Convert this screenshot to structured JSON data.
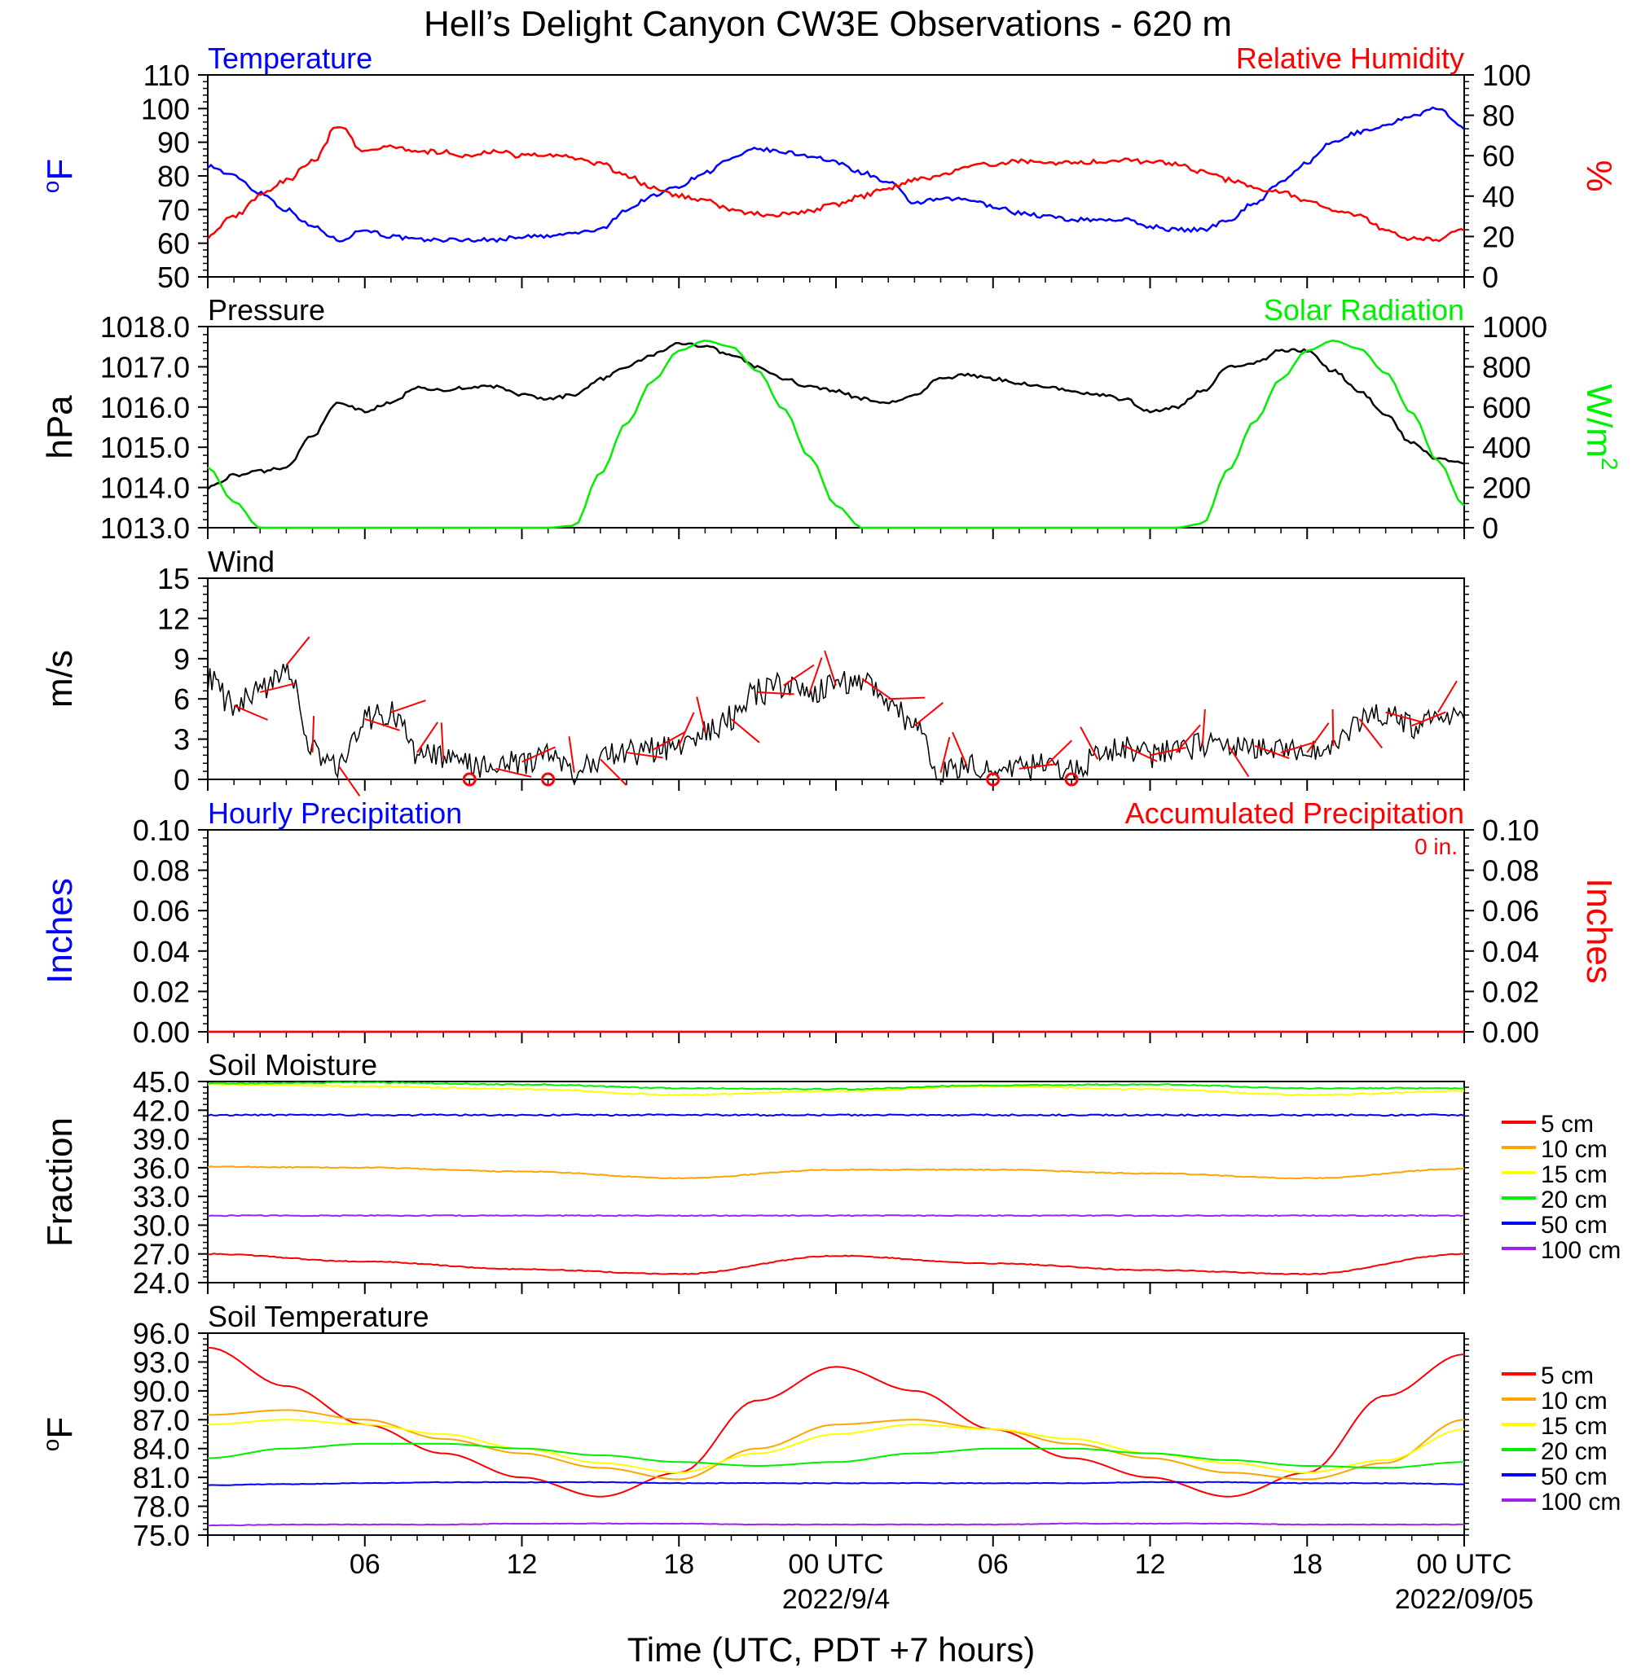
{
  "title": "Hell’s Delight Canyon CW3E Observations - 620 m",
  "xlabel": "Time (UTC, PDT +7 hours)",
  "x_ticks": [
    "06",
    "12",
    "18",
    "00 UTC",
    "06",
    "12",
    "18",
    "00 UTC"
  ],
  "x_dates": [
    "2022/9/4",
    "2022/09/05"
  ],
  "colors": {
    "blue": "#0000ff",
    "red": "#ff0000",
    "green": "#00ee00",
    "black": "#000000",
    "orange": "#ffa500",
    "yellow": "#ffff00",
    "purple": "#a020f0"
  },
  "chart_data": [
    {
      "type": "line",
      "title_left": "Temperature",
      "title_right": "Relative Humidity",
      "ylabel_left": "oF",
      "ylabel_right": "%",
      "ylim_left": [
        50,
        110
      ],
      "ylim_right": [
        0,
        100
      ],
      "yticks_left": [
        "50",
        "60",
        "70",
        "80",
        "90",
        "100",
        "110"
      ],
      "yticks_right": [
        "0",
        "20",
        "40",
        "60",
        "80",
        "100"
      ],
      "x_hours": [
        0,
        1,
        2,
        3,
        4,
        5,
        6,
        7,
        8,
        9,
        10,
        11,
        12,
        13,
        14,
        15,
        16,
        17,
        18,
        19,
        20,
        21,
        22,
        23,
        24,
        25,
        26,
        27,
        28,
        29,
        30,
        31,
        32,
        33,
        34,
        35,
        36,
        37,
        38,
        39,
        40,
        41,
        42,
        43,
        44,
        45,
        46,
        47,
        48
      ],
      "series": [
        {
          "name": "Temperature",
          "axis": "left",
          "color": "#0000ff",
          "values": [
            83,
            80,
            75,
            70,
            65,
            61,
            64,
            62,
            61,
            61,
            61,
            61,
            62,
            62,
            63,
            64,
            70,
            74,
            77,
            81,
            85,
            88,
            87,
            86,
            84,
            81,
            78,
            72,
            73,
            73,
            71,
            69,
            68,
            67,
            67,
            67,
            65,
            64,
            64,
            67,
            72,
            78,
            84,
            90,
            93,
            95,
            98,
            100,
            94
          ]
        },
        {
          "name": "Relative Humidity",
          "axis": "right",
          "color": "#ff0000",
          "values": [
            20,
            30,
            40,
            48,
            57,
            75,
            62,
            65,
            62,
            62,
            60,
            62,
            60,
            60,
            59,
            56,
            50,
            44,
            40,
            38,
            33,
            31,
            31,
            33,
            36,
            40,
            44,
            48,
            50,
            54,
            56,
            57,
            57,
            56,
            57,
            58,
            57,
            56,
            52,
            48,
            44,
            42,
            37,
            33,
            30,
            23,
            19,
            18,
            24
          ]
        }
      ]
    },
    {
      "type": "line",
      "title_left": "Pressure",
      "title_right": "Solar Radiation",
      "ylabel_left": "hPa",
      "ylabel_right": "W/m2",
      "ylim_left": [
        1013.0,
        1018.0
      ],
      "ylim_right": [
        0,
        1000
      ],
      "yticks_left": [
        "1013.0",
        "1014.0",
        "1015.0",
        "1016.0",
        "1017.0",
        "1018.0"
      ],
      "yticks_right": [
        "0",
        "200",
        "400",
        "600",
        "800",
        "1000"
      ],
      "x_hours": [
        0,
        1,
        2,
        3,
        4,
        5,
        6,
        7,
        8,
        9,
        10,
        11,
        12,
        13,
        14,
        15,
        16,
        17,
        18,
        19,
        20,
        21,
        22,
        23,
        24,
        25,
        26,
        27,
        28,
        29,
        30,
        31,
        32,
        33,
        34,
        35,
        36,
        37,
        38,
        39,
        40,
        41,
        42,
        43,
        44,
        45,
        46,
        47,
        48
      ],
      "series": [
        {
          "name": "Pressure",
          "axis": "left",
          "color": "#000000",
          "values": [
            1014.0,
            1014.3,
            1014.4,
            1014.5,
            1015.3,
            1016.1,
            1015.9,
            1016.1,
            1016.5,
            1016.4,
            1016.5,
            1016.5,
            1016.3,
            1016.2,
            1016.3,
            1016.7,
            1017.0,
            1017.3,
            1017.6,
            1017.5,
            1017.3,
            1017.0,
            1016.7,
            1016.5,
            1016.4,
            1016.2,
            1016.1,
            1016.3,
            1016.7,
            1016.8,
            1016.7,
            1016.6,
            1016.5,
            1016.4,
            1016.3,
            1016.2,
            1015.9,
            1016.0,
            1016.4,
            1017.0,
            1017.1,
            1017.4,
            1017.4,
            1016.9,
            1016.4,
            1015.8,
            1015.1,
            1014.7,
            1014.6
          ]
        },
        {
          "name": "Solar Radiation",
          "axis": "right",
          "color": "#00ee00",
          "values": [
            300,
            130,
            0,
            0,
            0,
            0,
            0,
            0,
            0,
            0,
            0,
            0,
            0,
            0,
            10,
            270,
            520,
            730,
            880,
            930,
            900,
            780,
            590,
            350,
            110,
            0,
            0,
            0,
            0,
            0,
            0,
            0,
            0,
            0,
            0,
            0,
            0,
            0,
            20,
            290,
            530,
            740,
            880,
            930,
            890,
            770,
            570,
            330,
            110
          ]
        }
      ]
    },
    {
      "type": "line",
      "title_left": "Wind",
      "ylabel_left": "m/s",
      "ylim_left": [
        0,
        15
      ],
      "yticks_left": [
        "0",
        "3",
        "6",
        "9",
        "12",
        "15"
      ],
      "x_hours": [
        0,
        1,
        2,
        3,
        4,
        5,
        6,
        7,
        8,
        9,
        10,
        11,
        12,
        13,
        14,
        15,
        16,
        17,
        18,
        19,
        20,
        21,
        22,
        23,
        24,
        25,
        26,
        27,
        28,
        29,
        30,
        31,
        32,
        33,
        34,
        35,
        36,
        37,
        38,
        39,
        40,
        41,
        42,
        43,
        44,
        45,
        46,
        47,
        48
      ],
      "series": [
        {
          "name": "Wind",
          "axis": "left",
          "color": "#000000",
          "values": [
            7.5,
            5.5,
            6.5,
            8.5,
            2.0,
            1.0,
            4.5,
            5.0,
            2.0,
            1.5,
            1.2,
            0.8,
            1.3,
            1.8,
            0.5,
            1.5,
            2.0,
            2.2,
            2.5,
            3.5,
            4.5,
            6.5,
            7.0,
            6.5,
            7.0,
            7.5,
            6.0,
            4.0,
            0.5,
            1.0,
            0.5,
            0.8,
            1.0,
            0.8,
            1.5,
            2.5,
            1.8,
            2.0,
            2.5,
            2.5,
            2.5,
            2.0,
            2.0,
            2.5,
            4.5,
            5.0,
            4.0,
            5.0,
            5.0
          ]
        }
      ],
      "calm_markers_hours": [
        10,
        13,
        30,
        33
      ]
    },
    {
      "type": "line",
      "title_left": "Hourly Precipitation",
      "title_right": "Accumulated Precipitation",
      "annotation": "0 in.",
      "ylabel_left": "Inches",
      "ylabel_right": "Inches",
      "ylim_left": [
        0,
        0.1
      ],
      "ylim_right": [
        0,
        0.1
      ],
      "yticks_left": [
        "0.00",
        "0.02",
        "0.04",
        "0.06",
        "0.08",
        "0.10"
      ],
      "yticks_right": [
        "0.00",
        "0.02",
        "0.04",
        "0.06",
        "0.08",
        "0.10"
      ],
      "x_hours": [
        0,
        48
      ],
      "series": [
        {
          "name": "Hourly Precipitation",
          "axis": "left",
          "color": "#0000ff",
          "values": [
            0,
            0
          ]
        },
        {
          "name": "Accumulated Precipitation",
          "axis": "right",
          "color": "#ff0000",
          "values": [
            0,
            0
          ]
        }
      ]
    },
    {
      "type": "line",
      "title_left": "Soil Moisture",
      "ylabel_left": "Fraction",
      "ylim_left": [
        24.0,
        45.0
      ],
      "yticks_left": [
        "24.0",
        "27.0",
        "30.0",
        "33.0",
        "36.0",
        "39.0",
        "42.0",
        "45.0"
      ],
      "x_hours": [
        0,
        6,
        12,
        18,
        24,
        30,
        36,
        42,
        48
      ],
      "series": [
        {
          "name": "5 cm",
          "color": "#ff0000",
          "values": [
            27.0,
            26.2,
            25.4,
            24.9,
            26.8,
            26.0,
            25.3,
            24.9,
            27.0
          ]
        },
        {
          "name": "10 cm",
          "color": "#ffa500",
          "values": [
            36.1,
            36.0,
            35.6,
            34.9,
            35.8,
            35.8,
            35.4,
            34.9,
            35.9
          ]
        },
        {
          "name": "15 cm",
          "color": "#ffff00",
          "values": [
            44.7,
            44.5,
            44.2,
            43.6,
            44.0,
            44.5,
            44.2,
            43.6,
            44.0
          ]
        },
        {
          "name": "20 cm",
          "color": "#00ee00",
          "values": [
            44.8,
            44.9,
            44.7,
            44.3,
            44.2,
            44.6,
            44.7,
            44.3,
            44.3
          ]
        },
        {
          "name": "50 cm",
          "color": "#0000ff",
          "values": [
            41.5,
            41.5,
            41.5,
            41.5,
            41.5,
            41.5,
            41.5,
            41.5,
            41.5
          ]
        },
        {
          "name": "100 cm",
          "color": "#a020f0",
          "values": [
            31.0,
            31.0,
            31.0,
            31.0,
            31.0,
            31.0,
            31.0,
            31.0,
            31.0
          ]
        }
      ]
    },
    {
      "type": "line",
      "title_left": "Soil Temperature",
      "ylabel_left": "oF",
      "ylim_left": [
        75.0,
        96.0
      ],
      "yticks_left": [
        "75.0",
        "78.0",
        "81.0",
        "84.0",
        "87.0",
        "90.0",
        "93.0",
        "96.0"
      ],
      "x_hours": [
        0,
        3,
        6,
        9,
        12,
        15,
        18,
        21,
        24,
        27,
        30,
        33,
        36,
        39,
        42,
        45,
        48
      ],
      "series": [
        {
          "name": "5 cm",
          "color": "#ff0000",
          "values": [
            94.5,
            90.5,
            86.5,
            83.5,
            81.0,
            79.0,
            81.5,
            89.0,
            92.5,
            90.0,
            86.0,
            83.0,
            81.0,
            79.0,
            81.5,
            89.5,
            93.8
          ]
        },
        {
          "name": "10 cm",
          "color": "#ffa500",
          "values": [
            87.5,
            88.0,
            87.0,
            85.0,
            83.5,
            82.0,
            80.8,
            84.0,
            86.5,
            87.0,
            86.0,
            84.5,
            83.0,
            81.5,
            80.8,
            82.5,
            87.0
          ]
        },
        {
          "name": "15 cm",
          "color": "#ffff00",
          "values": [
            86.5,
            87.0,
            86.5,
            85.5,
            84.0,
            82.5,
            81.5,
            83.5,
            85.5,
            86.5,
            86.0,
            85.0,
            83.5,
            82.5,
            81.5,
            82.8,
            86.0
          ]
        },
        {
          "name": "20 cm",
          "color": "#00ee00",
          "values": [
            83.0,
            84.0,
            84.5,
            84.5,
            84.0,
            83.3,
            82.6,
            82.2,
            82.6,
            83.5,
            84.0,
            84.0,
            83.5,
            82.8,
            82.2,
            82.0,
            82.6
          ]
        },
        {
          "name": "50 cm",
          "color": "#0000ff",
          "values": [
            80.2,
            80.3,
            80.4,
            80.5,
            80.5,
            80.5,
            80.4,
            80.4,
            80.4,
            80.4,
            80.4,
            80.4,
            80.5,
            80.5,
            80.4,
            80.4,
            80.3
          ]
        },
        {
          "name": "100 cm",
          "color": "#a020f0",
          "values": [
            76.0,
            76.1,
            76.1,
            76.1,
            76.2,
            76.2,
            76.2,
            76.1,
            76.1,
            76.1,
            76.1,
            76.2,
            76.2,
            76.2,
            76.1,
            76.1,
            76.1
          ]
        }
      ]
    }
  ]
}
